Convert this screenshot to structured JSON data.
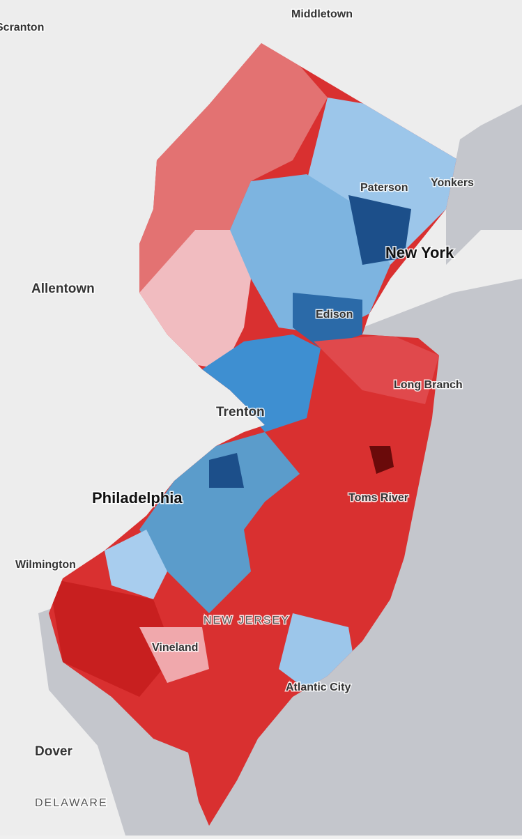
{
  "map": {
    "places": [
      "Scranton",
      "Middletown",
      "Paterson",
      "Yonkers",
      "New York",
      "Allentown",
      "Edison",
      "Long Branch",
      "Trenton",
      "Philadelphia",
      "Toms River",
      "Wilmington",
      "Vineland",
      "Atlantic City",
      "Dover"
    ],
    "regions": [
      "NEW JERSEY",
      "DELAWARE"
    ]
  }
}
